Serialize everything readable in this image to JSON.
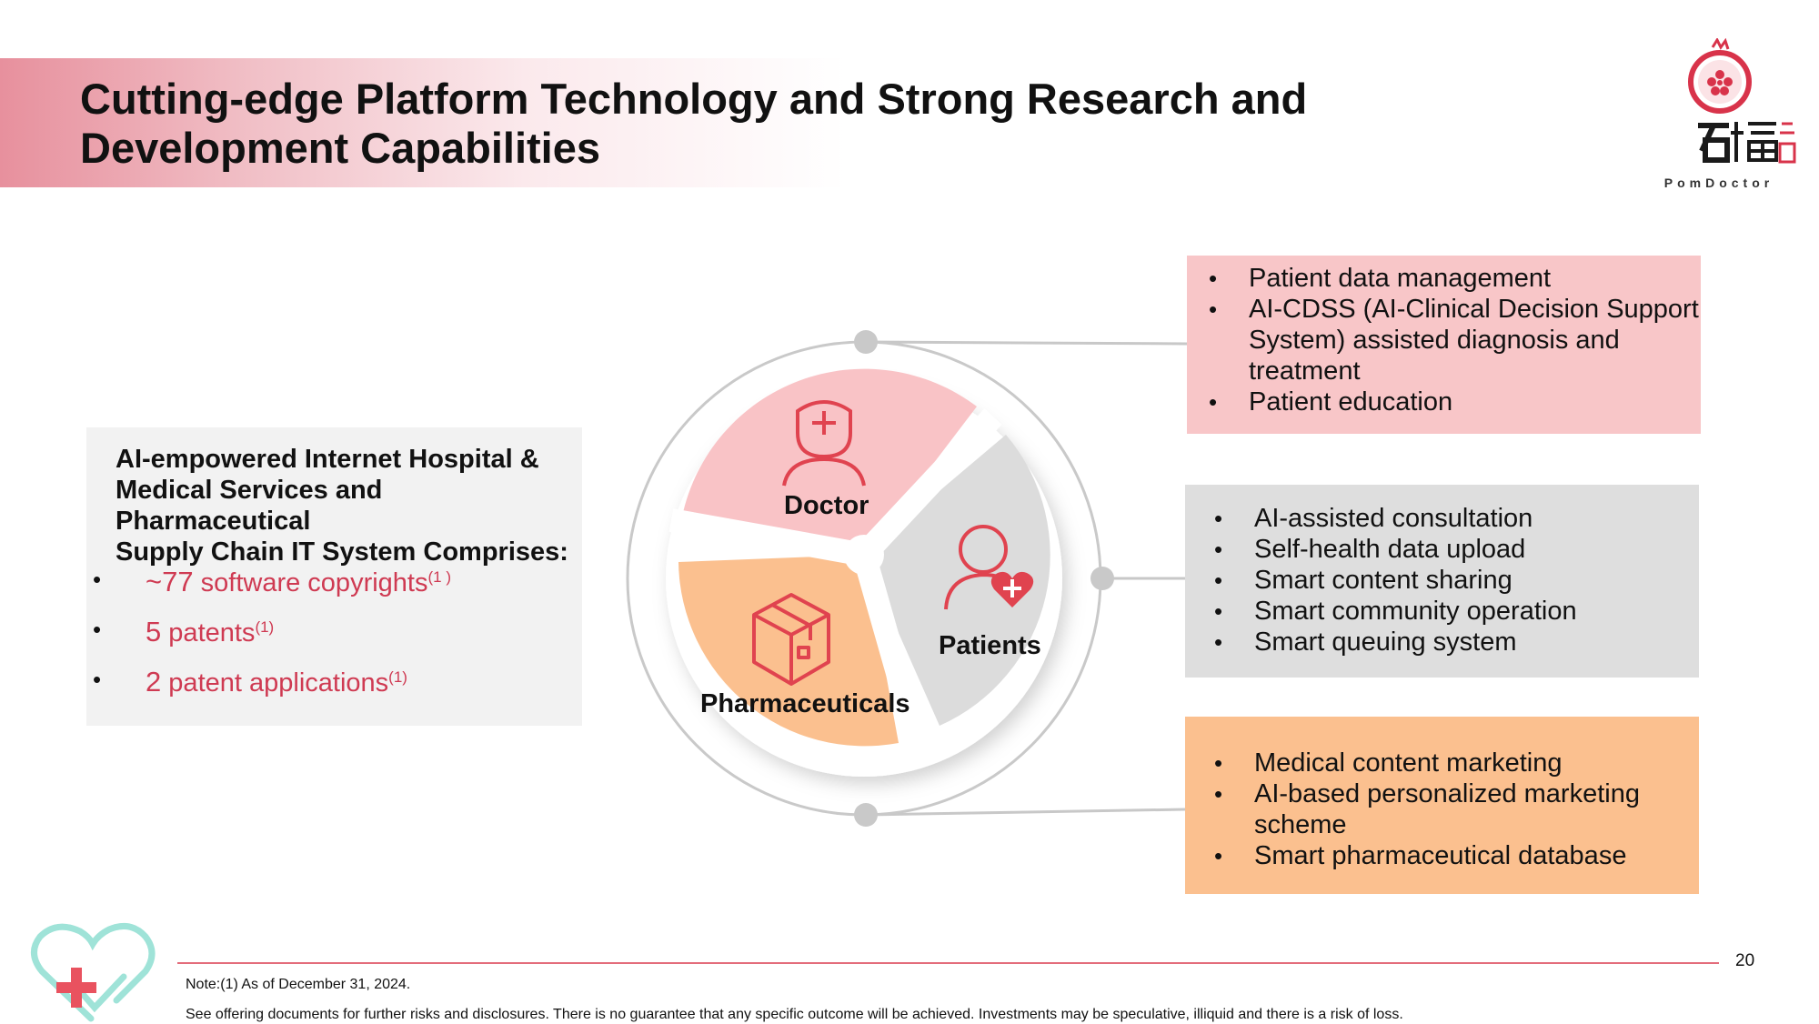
{
  "title": {
    "line1": "Cutting-edge Platform Technology and Strong Research and",
    "line2": "Development Capabilities"
  },
  "logo": {
    "brand": "PomDoctor",
    "cn_chars": "石榴云医"
  },
  "left_panel": {
    "heading_line1": "AI-empowered Internet Hospital &",
    "heading_line2": "Medical Services and Pharmaceutical",
    "heading_line3": "Supply Chain IT System Comprises:",
    "items": [
      {
        "number": "~77",
        "text": " software copyrights",
        "note": "(1 )"
      },
      {
        "number": "5",
        "text": " patents",
        "note": "(1)"
      },
      {
        "number": "2",
        "text": " patent applications",
        "note": "(1)"
      }
    ]
  },
  "wheel": {
    "segments": [
      {
        "label": "Doctor",
        "color": "#f9c3c6",
        "icon": "doctor-icon"
      },
      {
        "label": "Patients",
        "color": "#dcdcdc",
        "icon": "patient-heart-icon"
      },
      {
        "label": "Pharmaceuticals",
        "color": "#fbc08f",
        "icon": "package-box-icon"
      }
    ],
    "icon_color": "#e0434f"
  },
  "right_boxes": [
    {
      "color": "#f8c6c8",
      "items": [
        "Patient data management",
        "AI-CDSS (AI-Clinical Decision Support System) assisted diagnosis and treatment",
        "Patient education"
      ]
    },
    {
      "color": "#dedede",
      "items": [
        "AI-assisted consultation",
        "Self-health data upload",
        "Smart content sharing",
        "Smart community operation",
        "Smart queuing system"
      ]
    },
    {
      "color": "#fbc08f",
      "items": [
        "Medical content marketing",
        "AI-based personalized marketing scheme",
        "Smart pharmaceutical database"
      ]
    }
  ],
  "footer": {
    "page_number": "20",
    "note": "Note:(1) As of December 31, 2024.",
    "disclaimer": "See offering documents for further risks and disclosures. There is no guarantee that any specific outcome will be achieved. Investments may be speculative, illiquid and there is a risk of loss."
  },
  "colors": {
    "accent_red": "#cf3a52",
    "footer_line": "#e36d7b"
  }
}
